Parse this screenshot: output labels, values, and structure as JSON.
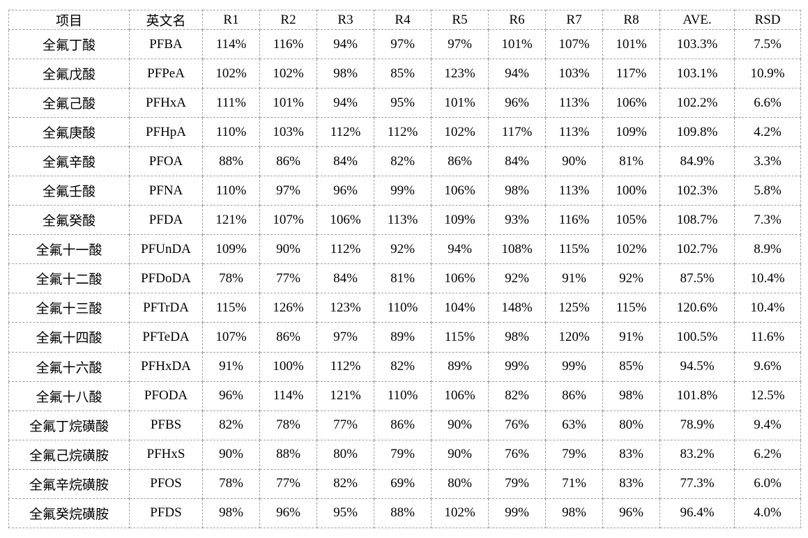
{
  "table": {
    "columns": [
      "项目",
      "英文名",
      "R1",
      "R2",
      "R3",
      "R4",
      "R5",
      "R6",
      "R7",
      "R8",
      "AVE.",
      "RSD"
    ],
    "rows": [
      [
        "全氟丁酸",
        "PFBA",
        "114%",
        "116%",
        "94%",
        "97%",
        "97%",
        "101%",
        "107%",
        "101%",
        "103.3%",
        "7.5%"
      ],
      [
        "全氟戊酸",
        "PFPeA",
        "102%",
        "102%",
        "98%",
        "85%",
        "123%",
        "94%",
        "103%",
        "117%",
        "103.1%",
        "10.9%"
      ],
      [
        "全氟己酸",
        "PFHxA",
        "111%",
        "101%",
        "94%",
        "95%",
        "101%",
        "96%",
        "113%",
        "106%",
        "102.2%",
        "6.6%"
      ],
      [
        "全氟庚酸",
        "PFHpA",
        "110%",
        "103%",
        "112%",
        "112%",
        "102%",
        "117%",
        "113%",
        "109%",
        "109.8%",
        "4.2%"
      ],
      [
        "全氟辛酸",
        "PFOA",
        "88%",
        "86%",
        "84%",
        "82%",
        "86%",
        "84%",
        "90%",
        "81%",
        "84.9%",
        "3.3%"
      ],
      [
        "全氟壬酸",
        "PFNA",
        "110%",
        "97%",
        "96%",
        "99%",
        "106%",
        "98%",
        "113%",
        "100%",
        "102.3%",
        "5.8%"
      ],
      [
        "全氟癸酸",
        "PFDA",
        "121%",
        "107%",
        "106%",
        "113%",
        "109%",
        "93%",
        "116%",
        "105%",
        "108.7%",
        "7.3%"
      ],
      [
        "全氟十一酸",
        "PFUnDA",
        "109%",
        "90%",
        "112%",
        "92%",
        "94%",
        "108%",
        "115%",
        "102%",
        "102.7%",
        "8.9%"
      ],
      [
        "全氟十二酸",
        "PFDoDA",
        "78%",
        "77%",
        "84%",
        "81%",
        "106%",
        "92%",
        "91%",
        "92%",
        "87.5%",
        "10.4%"
      ],
      [
        "全氟十三酸",
        "PFTrDA",
        "115%",
        "126%",
        "123%",
        "110%",
        "104%",
        "148%",
        "125%",
        "115%",
        "120.6%",
        "10.4%"
      ],
      [
        "全氟十四酸",
        "PFTeDA",
        "107%",
        "86%",
        "97%",
        "89%",
        "115%",
        "98%",
        "120%",
        "91%",
        "100.5%",
        "11.6%"
      ],
      [
        "全氟十六酸",
        "PFHxDA",
        "91%",
        "100%",
        "112%",
        "82%",
        "89%",
        "99%",
        "99%",
        "85%",
        "94.5%",
        "9.6%"
      ],
      [
        "全氟十八酸",
        "PFODA",
        "96%",
        "114%",
        "121%",
        "110%",
        "106%",
        "82%",
        "86%",
        "98%",
        "101.8%",
        "12.5%"
      ],
      [
        "全氟丁烷磺酸",
        "PFBS",
        "82%",
        "78%",
        "77%",
        "86%",
        "90%",
        "76%",
        "63%",
        "80%",
        "78.9%",
        "9.4%"
      ],
      [
        "全氟己烷磺胺",
        "PFHxS",
        "90%",
        "88%",
        "80%",
        "79%",
        "90%",
        "76%",
        "79%",
        "83%",
        "83.2%",
        "6.2%"
      ],
      [
        "全氟辛烷磺胺",
        "PFOS",
        "78%",
        "77%",
        "82%",
        "69%",
        "80%",
        "79%",
        "71%",
        "83%",
        "77.3%",
        "6.0%"
      ],
      [
        "全氟癸烷磺胺",
        "PFDS",
        "98%",
        "96%",
        "95%",
        "88%",
        "102%",
        "99%",
        "98%",
        "96%",
        "96.4%",
        "4.0%"
      ]
    ]
  },
  "colors": {
    "border": "#a0a0a0",
    "text": "#000000",
    "background": "#ffffff"
  }
}
